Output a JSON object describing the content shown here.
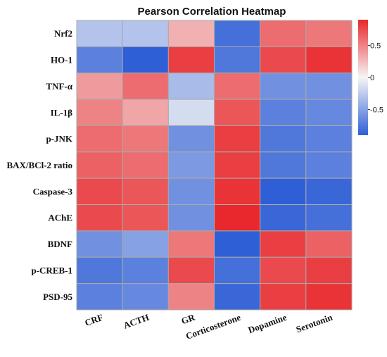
{
  "chart_data": {
    "type": "heatmap",
    "title": "Pearson Correlation Heatmap",
    "rows": [
      "Nrf2",
      "HO-1",
      "TNF-α",
      "IL-1β",
      "p-JNK",
      "BAX/BCl-2 ratio",
      "Caspase-3",
      "AChE",
      "BDNF",
      "p-CREB-1",
      "PSD-95"
    ],
    "columns": [
      "CRF",
      "ACTH",
      "GR",
      "Corticosterone",
      "Dopamine",
      "Serotonin"
    ],
    "values": [
      [
        -0.3,
        -0.3,
        0.3,
        -0.8,
        0.6,
        0.55
      ],
      [
        -0.7,
        -0.9,
        0.8,
        -0.75,
        0.75,
        0.85
      ],
      [
        0.4,
        0.6,
        -0.35,
        0.6,
        -0.6,
        -0.6
      ],
      [
        0.5,
        0.35,
        -0.15,
        0.7,
        -0.7,
        -0.65
      ],
      [
        0.6,
        0.55,
        -0.6,
        0.8,
        -0.75,
        -0.7
      ],
      [
        0.65,
        0.6,
        -0.55,
        0.8,
        -0.75,
        -0.7
      ],
      [
        0.75,
        0.7,
        -0.6,
        0.85,
        -0.9,
        -0.85
      ],
      [
        0.75,
        0.7,
        -0.6,
        0.9,
        -0.85,
        -0.8
      ],
      [
        -0.6,
        -0.5,
        0.55,
        -0.9,
        0.8,
        0.65
      ],
      [
        -0.75,
        -0.7,
        0.75,
        -0.8,
        0.75,
        0.8
      ],
      [
        -0.7,
        -0.65,
        0.5,
        -0.85,
        0.8,
        0.85
      ]
    ],
    "colorbar": {
      "range": [
        -0.9,
        0.9
      ],
      "ticks": [
        0.5,
        0,
        -0.5
      ],
      "tick_labels": [
        "0.5",
        "0",
        "-0.5"
      ],
      "low_color": "#2f5fd6",
      "mid_color": "#f5f5f5",
      "high_color": "#e8282c"
    },
    "grid": true
  }
}
